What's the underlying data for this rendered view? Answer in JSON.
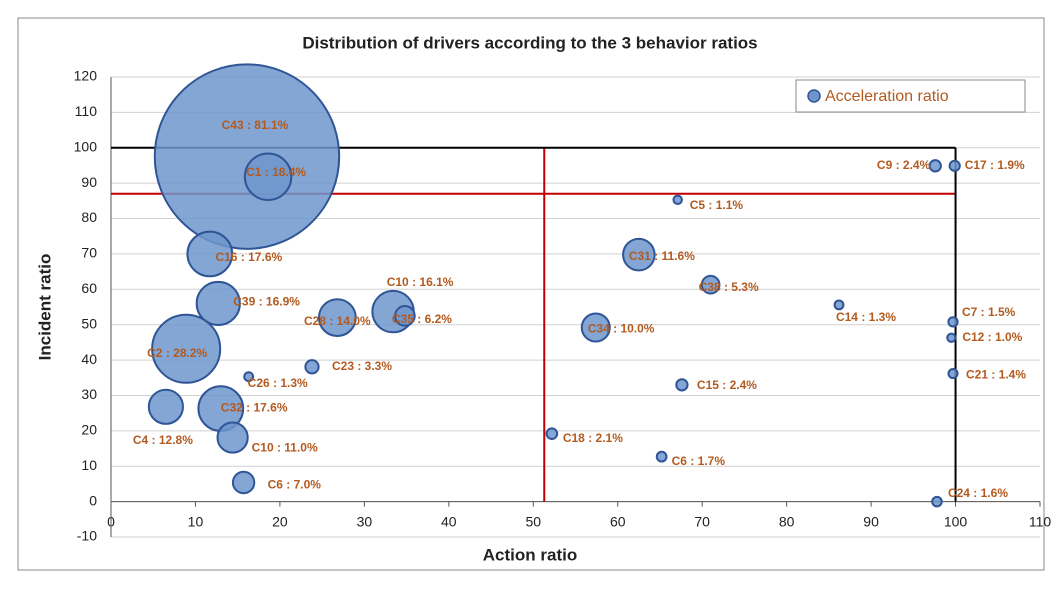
{
  "chart_data": {
    "type": "bubble",
    "title": "Distribution of drivers according to the 3 behavior ratios",
    "x_label": "Action ratio",
    "y_label": "Incident ratio",
    "xlim": [
      0,
      110
    ],
    "xticks": [
      0,
      10,
      20,
      30,
      40,
      50,
      60,
      70,
      80,
      90,
      100,
      110
    ],
    "ylim": [
      -10,
      120
    ],
    "yticks": [
      -10,
      0,
      10,
      20,
      30,
      40,
      50,
      60,
      70,
      80,
      90,
      100,
      110,
      120
    ],
    "grid": true,
    "legend": "top-right",
    "series": [
      {
        "name": "Acceleration ratio",
        "color": "#6f96cc",
        "stroke": "#2f5597",
        "x": [
          16.1,
          18.6,
          11.7,
          12.7,
          26.8,
          33.4,
          34.8,
          8.9,
          16.3,
          23.8,
          6.5,
          13.0,
          14.4,
          15.7,
          62.5,
          71.0,
          57.4,
          67.6,
          52.2,
          65.2,
          67.1,
          86.2,
          97.6,
          99.9,
          99.7,
          99.5,
          99.7,
          97.8
        ],
        "values": [
          97.5,
          91.8,
          70,
          56,
          52,
          53.7,
          52.5,
          43.2,
          35.3,
          38.1,
          26.8,
          26.3,
          18.1,
          5.4,
          69.8,
          61.3,
          49.2,
          33,
          19.2,
          12.7,
          85.3,
          55.6,
          94.9,
          94.9,
          50.8,
          46.3,
          36.2,
          0
        ],
        "sizes": [
          81.1,
          18.4,
          17.6,
          16.9,
          14.0,
          16.1,
          6.2,
          28.2,
          1.3,
          3.3,
          12.8,
          17.6,
          11.0,
          7.0,
          11.6,
          5.3,
          10.0,
          2.4,
          2.1,
          1.7,
          1.1,
          1.3,
          2.4,
          1.9,
          1.5,
          1.0,
          1.4,
          1.6
        ],
        "value_labels": [
          "C43 : 81.1%",
          "C1 : 18.4%",
          "C16 : 17.6%",
          "C39 : 16.9%",
          "C28 : 14.0%",
          "C10 : 16.1%",
          "C35 : 6.2%",
          "C2 : 28.2%",
          "C26 : 1.3%",
          "C23 : 3.3%",
          "C4 : 12.8%",
          "C32 : 17.6%",
          "C10 : 11.0%",
          "C6 : 7.0%",
          "C31 : 11.6%",
          "C38 : 5.3%",
          "C34 : 10.0%",
          "C15 : 2.4%",
          "C18 : 2.1%",
          "C6 : 1.7%",
          "C5 : 1.1%",
          "C14 : 1.3%",
          "C9 : 2.4%",
          "C17 : 1.9%",
          "C7 : 1.5%",
          "C12 : 1.0%",
          "C21 : 1.4%",
          "C24 : 1.6%"
        ]
      }
    ],
    "reference_lines": [
      {
        "axis": "x",
        "value": 51.3,
        "color": "#c00000"
      },
      {
        "axis": "y",
        "value": 87,
        "color": "#c00000"
      },
      {
        "axis": "x",
        "value": 100,
        "color": "#000000"
      },
      {
        "axis": "y",
        "value": 100,
        "color": "#000000"
      }
    ]
  }
}
